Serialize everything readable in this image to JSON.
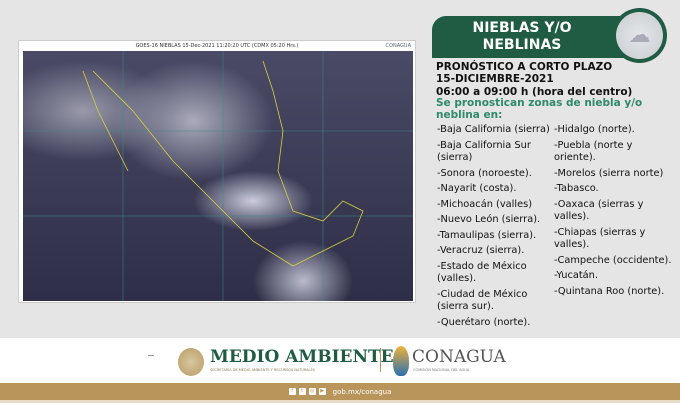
{
  "satellite": {
    "caption": "GOES-16 NIEBLAS  15-Dec-2021 11:20:20 UTC (CDMX  05:20 Hrs.)",
    "logo": "CONAGUA"
  },
  "banner": {
    "title_line1": "NIEBLAS Y/O",
    "title_line2": "NEBLINAS",
    "icon": "cloud-icon"
  },
  "forecast": {
    "type": "PRONÓSTICO A CORTO PLAZO",
    "date": "15-DICIEMBRE-2021",
    "time": "06:00 a 09:00 h (hora del centro)",
    "intro": "Se pronostican zonas de niebla y/o neblina en:"
  },
  "regions_col1": [
    "-Baja California (sierra)",
    "-Baja California Sur (sierra)",
    "-Sonora (noroeste).",
    "-Nayarit (costa).",
    "-Michoacán (valles)",
    "-Nuevo León (sierra).",
    "-Tamaulipas (sierra).",
    "-Veracruz (sierra).",
    "-Estado de México (valles).",
    "-Ciudad de México (sierra sur).",
    "-Querétaro (norte)."
  ],
  "regions_col2": [
    "-Hidalgo (norte).",
    "-Puebla (norte y oriente).",
    "-Morelos (sierra norte)",
    "-Tabasco.",
    "-Oaxaca (sierras y valles).",
    "-Chiapas (sierras y valles).",
    "-Campeche (occidente).",
    "-Yucatán.",
    "-Quintana Roo (norte)."
  ],
  "footer": {
    "medio_ambiente": "MEDIO AMBIENTE",
    "medio_ambiente_sub": "SECRETARÍA DE MEDIO AMBIENTE Y RECURSOS NATURALES",
    "conagua": "CONAGUA",
    "conagua_sub": "COMISIÓN NACIONAL DEL AGUA",
    "url": "gob.mx/conagua",
    "social_icons": [
      "facebook-icon",
      "twitter-icon",
      "instagram-icon",
      "youtube-icon"
    ]
  },
  "colors": {
    "green": "#1f5c43",
    "accent_green": "#2e8a6a",
    "gold": "#b8955a"
  }
}
